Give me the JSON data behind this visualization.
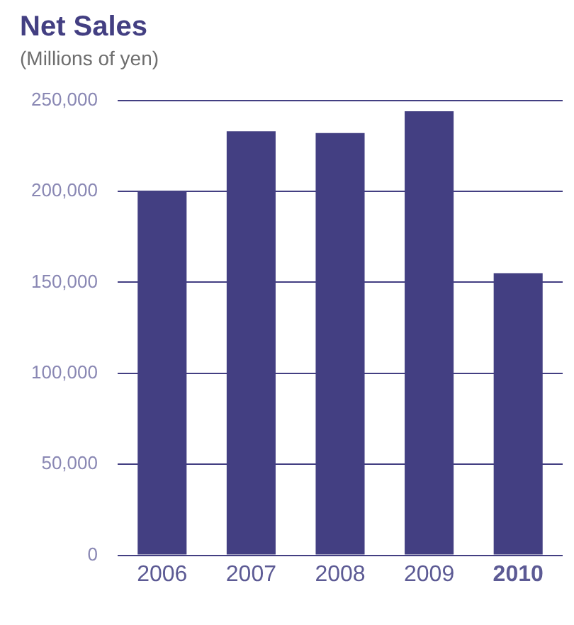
{
  "chart_data": {
    "type": "bar",
    "title": "Net Sales",
    "subtitle": "(Millions of yen)",
    "categories": [
      "2006",
      "2007",
      "2008",
      "2009",
      "2010"
    ],
    "values": [
      200000,
      233000,
      232000,
      244000,
      155000
    ],
    "color": "#433f82",
    "ylim": [
      0,
      250000
    ],
    "yticks": [
      0,
      {
        "value": 50000,
        "label": "50,000"
      },
      {
        "value": 100000,
        "label": "100,000"
      },
      {
        "value": 150000,
        "label": "150,000"
      },
      {
        "value": 200000,
        "label": "200,000"
      },
      {
        "value": 250000,
        "label": "250,000"
      }
    ],
    "grid": "y",
    "legend": false
  }
}
